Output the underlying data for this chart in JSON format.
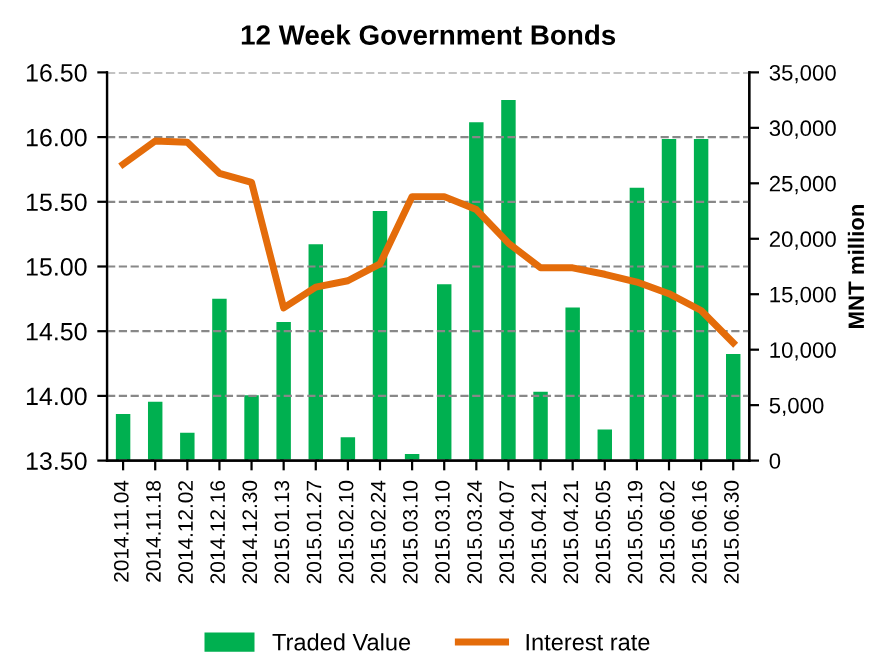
{
  "chart_data": {
    "type": "bar",
    "title": "12 Week Government Bonds",
    "y2label": "MNT million",
    "categories": [
      "2014.11.04",
      "2014.11.18",
      "2014.12.02",
      "2014.12.16",
      "2014.12.30",
      "2015.01.13",
      "2015.01.27",
      "2015.02.10",
      "2015.02.24",
      "2015.03.10",
      "2015.03.10",
      "2015.03.24",
      "2015.04.07",
      "2015.04.21",
      "2015.04.21",
      "2015.05.05",
      "2015.05.19",
      "2015.06.02",
      "2015.06.16",
      "2015.06.30"
    ],
    "series": [
      {
        "name": "Traded Value",
        "axis": "y2",
        "color": "#00b050",
        "values": [
          4200,
          5300,
          2500,
          14600,
          5900,
          12500,
          19500,
          2100,
          22500,
          600,
          15900,
          30500,
          32500,
          6200,
          13800,
          2800,
          24600,
          29000,
          29000,
          9600
        ]
      },
      {
        "name": "Interest rate",
        "type": "line",
        "axis": "y",
        "color": "#e46c0a",
        "values": [
          15.79,
          15.97,
          15.96,
          15.72,
          15.65,
          14.68,
          14.84,
          14.89,
          15.02,
          15.54,
          15.54,
          15.44,
          15.18,
          14.99,
          14.99,
          14.94,
          14.88,
          14.79,
          14.66,
          14.41
        ]
      }
    ],
    "ylim": [
      13.5,
      16.5
    ],
    "yticks": [
      {
        "value": 13.5,
        "label": "13.50"
      },
      {
        "value": 14,
        "label": "14.00"
      },
      {
        "value": 14.5,
        "label": "14.50"
      },
      {
        "value": 15,
        "label": "15.00"
      },
      {
        "value": 15.5,
        "label": "15.50"
      },
      {
        "value": 16,
        "label": "16.00"
      },
      {
        "value": 16.5,
        "label": "16.50"
      }
    ],
    "y2lim": [
      0,
      35000
    ],
    "y2ticks": [
      {
        "value": 0,
        "label": "0"
      },
      {
        "value": 5000,
        "label": "5,000"
      },
      {
        "value": 10000,
        "label": "10,000"
      },
      {
        "value": 15000,
        "label": "15,000"
      },
      {
        "value": 20000,
        "label": "20,000"
      },
      {
        "value": 25000,
        "label": "25,000"
      },
      {
        "value": 30000,
        "label": "30,000"
      },
      {
        "value": 35000,
        "label": "35,000"
      }
    ],
    "grid": "y",
    "legend": "bottom",
    "marker": "none",
    "line_style": "solid"
  }
}
